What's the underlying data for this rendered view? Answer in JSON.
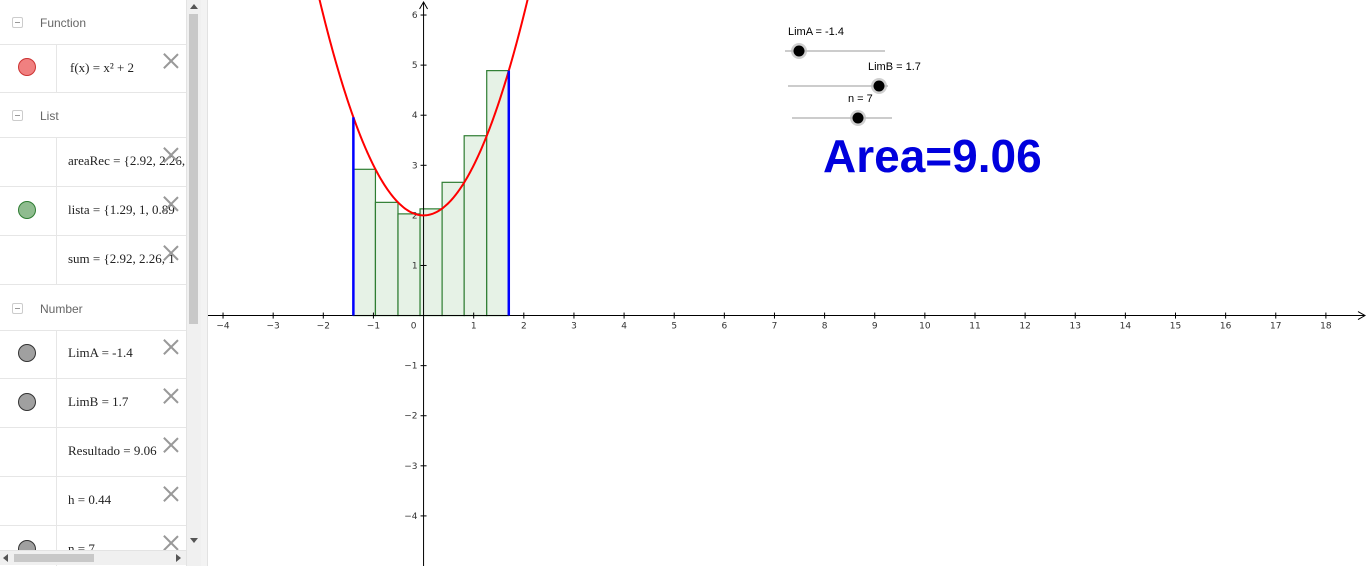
{
  "algebra": {
    "groups": [
      {
        "label": "Function"
      },
      {
        "label": "List"
      },
      {
        "label": "Number"
      }
    ],
    "function_expr": "f(x) = x² + 2",
    "rows": [
      {
        "expr": "areaRec = {2.92, 2.26,"
      },
      {
        "expr": "lista = {1.29, 1, 0.89"
      },
      {
        "expr": "sum = {2.92, 2.26, 1"
      },
      {
        "expr": "LimA = -1.4"
      },
      {
        "expr": "LimB = 1.7"
      },
      {
        "expr": "Resultado = 9.06"
      },
      {
        "expr": "h = 0.44"
      },
      {
        "expr": "n = 7"
      }
    ],
    "colors": {
      "function": "#f08080",
      "list": "#8fbc8f",
      "number": "#a0a0a0"
    }
  },
  "graphics": {
    "sliders": [
      {
        "label": "LimA = -1.4",
        "value": -1.4
      },
      {
        "label": "LimB = 1.7",
        "value": 1.7
      },
      {
        "label": "n = 7",
        "value": 7
      }
    ],
    "result_text": "Area=9.06",
    "result_color": "#0000dd"
  },
  "chart_data": {
    "type": "line",
    "title": "",
    "function": "f(x) = x^2 + 2",
    "curve_color": "#ff0000",
    "x_ticks": [
      -4,
      -3,
      -2,
      -1,
      0,
      1,
      2,
      3,
      4,
      5,
      6,
      7,
      8,
      9,
      10,
      11,
      12,
      13,
      14,
      15,
      16,
      17,
      18
    ],
    "y_ticks": [
      -4,
      -3,
      -2,
      -1,
      1,
      2,
      3,
      4,
      5,
      6
    ],
    "xlim": [
      -4.3,
      18.8
    ],
    "ylim": [
      -5,
      6.3
    ],
    "bounds": {
      "a": -1.4,
      "b": 1.7,
      "color": "#0000ff"
    },
    "rectangles": {
      "x": [
        -1.4,
        -0.96,
        -0.51,
        -0.07,
        0.37,
        0.81,
        1.26
      ],
      "heights": [
        2.92,
        2.26,
        2.03,
        2.13,
        2.66,
        3.59,
        4.89
      ],
      "fill": "#e6f2e6",
      "stroke": "#2e7d32"
    }
  }
}
